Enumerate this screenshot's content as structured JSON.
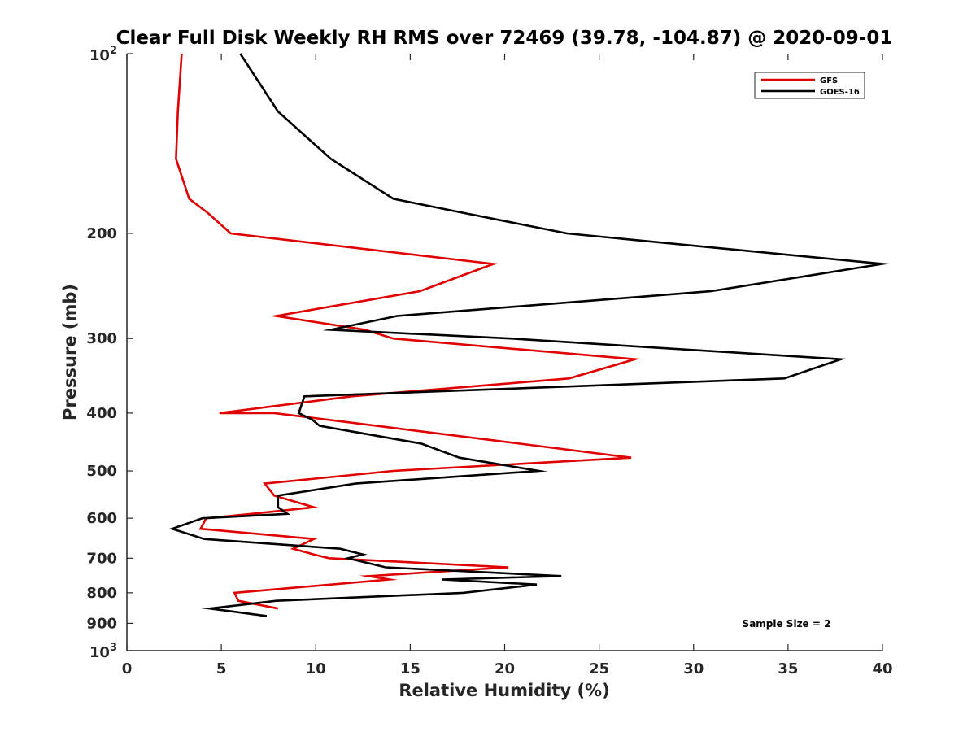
{
  "chart_data": {
    "type": "line",
    "title": "Clear Full Disk Weekly RH RMS over 72469 (39.78, -104.87) @ 2020-09-01",
    "xlabel": "Relative Humidity (%)",
    "ylabel": "Pressure (mb)",
    "xlim": [
      0,
      40
    ],
    "ylim": [
      100,
      1000
    ],
    "y_scale": "log",
    "y_reversed": true,
    "xticks": [
      0,
      5,
      10,
      15,
      20,
      25,
      30,
      35,
      40
    ],
    "yticks": [
      {
        "value": 100,
        "base": "10",
        "exp": "2"
      },
      {
        "value": 200,
        "label": "200"
      },
      {
        "value": 300,
        "label": "300"
      },
      {
        "value": 400,
        "label": "400"
      },
      {
        "value": 500,
        "label": "500"
      },
      {
        "value": 600,
        "label": "600"
      },
      {
        "value": 700,
        "label": "700"
      },
      {
        "value": 800,
        "label": "800"
      },
      {
        "value": 900,
        "label": "900"
      },
      {
        "value": 1000,
        "base": "10",
        "exp": "3"
      }
    ],
    "grid": false,
    "legend_position": "top-right",
    "series": [
      {
        "name": "GFS",
        "color": "#e00000",
        "points": [
          [
            2.9,
            100
          ],
          [
            2.7,
            125
          ],
          [
            2.6,
            150
          ],
          [
            3.3,
            175
          ],
          [
            4.3,
            185
          ],
          [
            5.5,
            200
          ],
          [
            19.4,
            225
          ],
          [
            15.5,
            250
          ],
          [
            7.9,
            275
          ],
          [
            12.6,
            290
          ],
          [
            14.1,
            300
          ],
          [
            26.9,
            325
          ],
          [
            23.4,
            350
          ],
          [
            11.9,
            375
          ],
          [
            4.9,
            400
          ],
          [
            7.8,
            400
          ],
          [
            20.8,
            450
          ],
          [
            26.7,
            475
          ],
          [
            14.1,
            500
          ],
          [
            7.3,
            525
          ],
          [
            7.8,
            550
          ],
          [
            9.9,
            575
          ],
          [
            6.6,
            590
          ],
          [
            4.2,
            600
          ],
          [
            3.9,
            625
          ],
          [
            9.9,
            650
          ],
          [
            8.8,
            675
          ],
          [
            9.9,
            690
          ],
          [
            10.7,
            700
          ],
          [
            20.2,
            725
          ],
          [
            12.8,
            750
          ],
          [
            13.9,
            760
          ],
          [
            5.7,
            800
          ],
          [
            5.9,
            825
          ],
          [
            8.0,
            850
          ]
        ]
      },
      {
        "name": "GOES-16",
        "color": "#000000",
        "points": [
          [
            6.0,
            100
          ],
          [
            8.0,
            125
          ],
          [
            10.8,
            150
          ],
          [
            14.1,
            175
          ],
          [
            17.9,
            185
          ],
          [
            23.3,
            200
          ],
          [
            40.0,
            225
          ],
          [
            30.9,
            250
          ],
          [
            14.3,
            275
          ],
          [
            10.8,
            290
          ],
          [
            20.3,
            300
          ],
          [
            37.8,
            325
          ],
          [
            34.8,
            350
          ],
          [
            9.4,
            375
          ],
          [
            9.1,
            400
          ],
          [
            9.8,
            410
          ],
          [
            10.2,
            420
          ],
          [
            15.6,
            450
          ],
          [
            17.6,
            475
          ],
          [
            21.8,
            500
          ],
          [
            12.1,
            525
          ],
          [
            8.0,
            550
          ],
          [
            8.0,
            575
          ],
          [
            8.5,
            590
          ],
          [
            4.0,
            600
          ],
          [
            2.4,
            625
          ],
          [
            4.1,
            650
          ],
          [
            11.3,
            675
          ],
          [
            12.5,
            690
          ],
          [
            11.7,
            700
          ],
          [
            13.7,
            725
          ],
          [
            23.0,
            750
          ],
          [
            16.7,
            760
          ],
          [
            21.7,
            775
          ],
          [
            17.8,
            800
          ],
          [
            7.9,
            825
          ],
          [
            4.4,
            850
          ],
          [
            7.4,
            875
          ]
        ]
      }
    ],
    "annotations": [
      {
        "text": "Sample Size = 2",
        "position": "bottom-right"
      }
    ]
  }
}
